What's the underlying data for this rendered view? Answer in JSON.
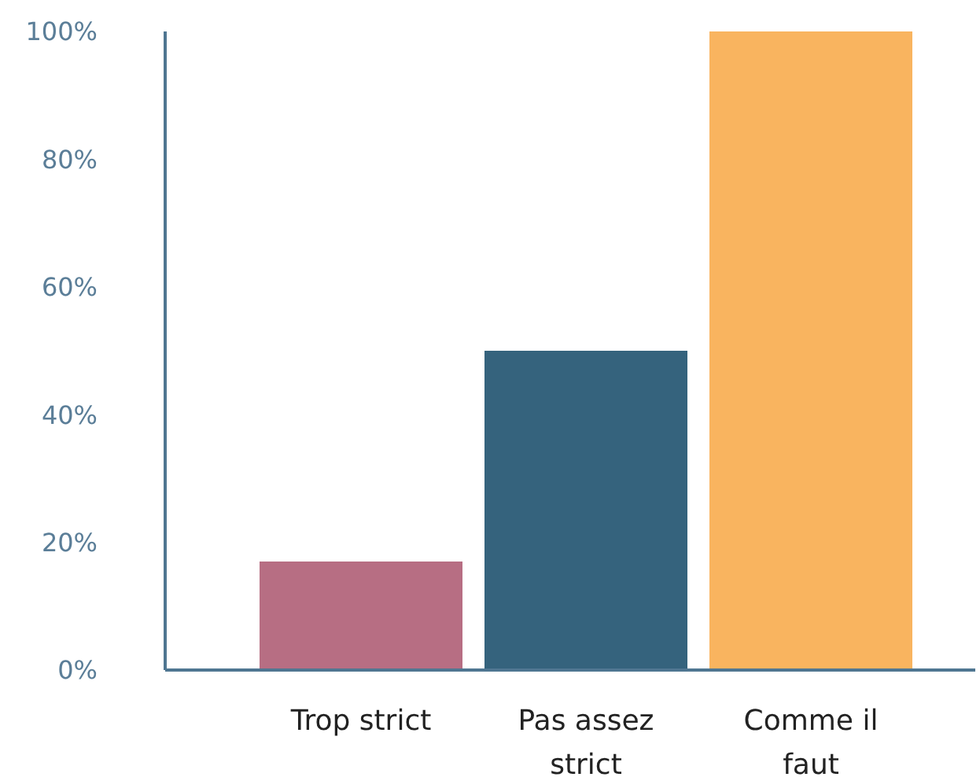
{
  "chart_data": {
    "type": "bar",
    "categories": [
      "Trop strict",
      "Pas assez strict",
      "Comme il faut"
    ],
    "values": [
      17,
      50,
      100
    ],
    "colors": [
      "#b76e83",
      "#35637d",
      "#f9b45f"
    ],
    "ylim": [
      0,
      100
    ],
    "yticks": [
      {
        "value": 0,
        "label": "0%"
      },
      {
        "value": 20,
        "label": "20%"
      },
      {
        "value": 40,
        "label": "40%"
      },
      {
        "value": 60,
        "label": "60%"
      },
      {
        "value": 80,
        "label": "80%"
      },
      {
        "value": 100,
        "label": "100%"
      }
    ],
    "grid": false
  }
}
